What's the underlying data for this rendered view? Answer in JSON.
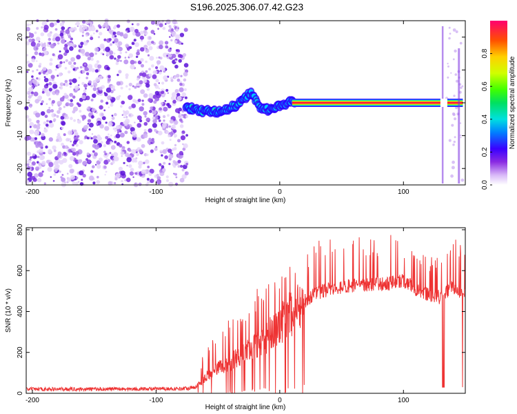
{
  "title": "S196.2025.306.07.42.G23",
  "chart_data": [
    {
      "type": "heatmap",
      "name": "spectrogram",
      "xlabel": "Height of straight line (km)",
      "ylabel": "Frequency (Hz)",
      "xlim": [
        -205,
        150
      ],
      "ylim": [
        -25,
        25
      ],
      "xticks": [
        -200,
        -100,
        0,
        100
      ],
      "yticks": [
        -20,
        -10,
        0,
        10,
        20
      ],
      "noise_region_x": [
        -205,
        -75
      ],
      "ridge": {
        "x": [
          -76,
          -70,
          -64,
          -58,
          -52,
          -46,
          -40,
          -35,
          -30,
          -26,
          -23,
          -20,
          -16,
          -12,
          -8,
          -4,
          0,
          4,
          8,
          12,
          20,
          40,
          60,
          80,
          100,
          120,
          132,
          137,
          142,
          148
        ],
        "y": [
          -1,
          -2,
          -2.5,
          -2.5,
          -2.8,
          -2,
          -1.5,
          -0.8,
          0.5,
          2.5,
          3,
          1,
          -1.2,
          -2.2,
          -1.8,
          -1.2,
          -0.8,
          -0.2,
          0.2,
          0,
          0,
          0,
          0,
          0,
          0,
          0,
          0,
          0,
          0,
          0
        ]
      },
      "colorbar": {
        "label": "Normalized spectral amplitude",
        "range": [
          0.0,
          1.0
        ],
        "ticks": [
          "0.0",
          "0.2",
          "0.4",
          "0.6",
          "0.8"
        ]
      }
    },
    {
      "type": "line",
      "name": "snr",
      "xlabel": "Height of straight line (km)",
      "ylabel": "SNR (10 * v/v)",
      "xlim": [
        -205,
        150
      ],
      "ylim": [
        0,
        810
      ],
      "xticks": [
        -200,
        -100,
        0,
        100
      ],
      "yticks": [
        0,
        200,
        400,
        600,
        800
      ],
      "color": "#ee3333",
      "envelope": {
        "x": [
          -205,
          -80,
          -68,
          -60,
          -50,
          -40,
          -30,
          -20,
          -10,
          0,
          10,
          20,
          30,
          40,
          50,
          60,
          70,
          80,
          90,
          100,
          110,
          120,
          130,
          140,
          145,
          150
        ],
        "base": [
          20,
          22,
          30,
          80,
          120,
          150,
          190,
          230,
          280,
          330,
          400,
          450,
          490,
          510,
          520,
          525,
          530,
          535,
          540,
          550,
          510,
          480,
          470,
          520,
          500,
          480
        ],
        "spike": [
          35,
          40,
          70,
          230,
          300,
          380,
          420,
          500,
          560,
          560,
          650,
          700,
          750,
          760,
          770,
          760,
          770,
          740,
          800,
          720,
          700,
          680,
          660,
          740,
          780,
          750
        ]
      }
    }
  ]
}
